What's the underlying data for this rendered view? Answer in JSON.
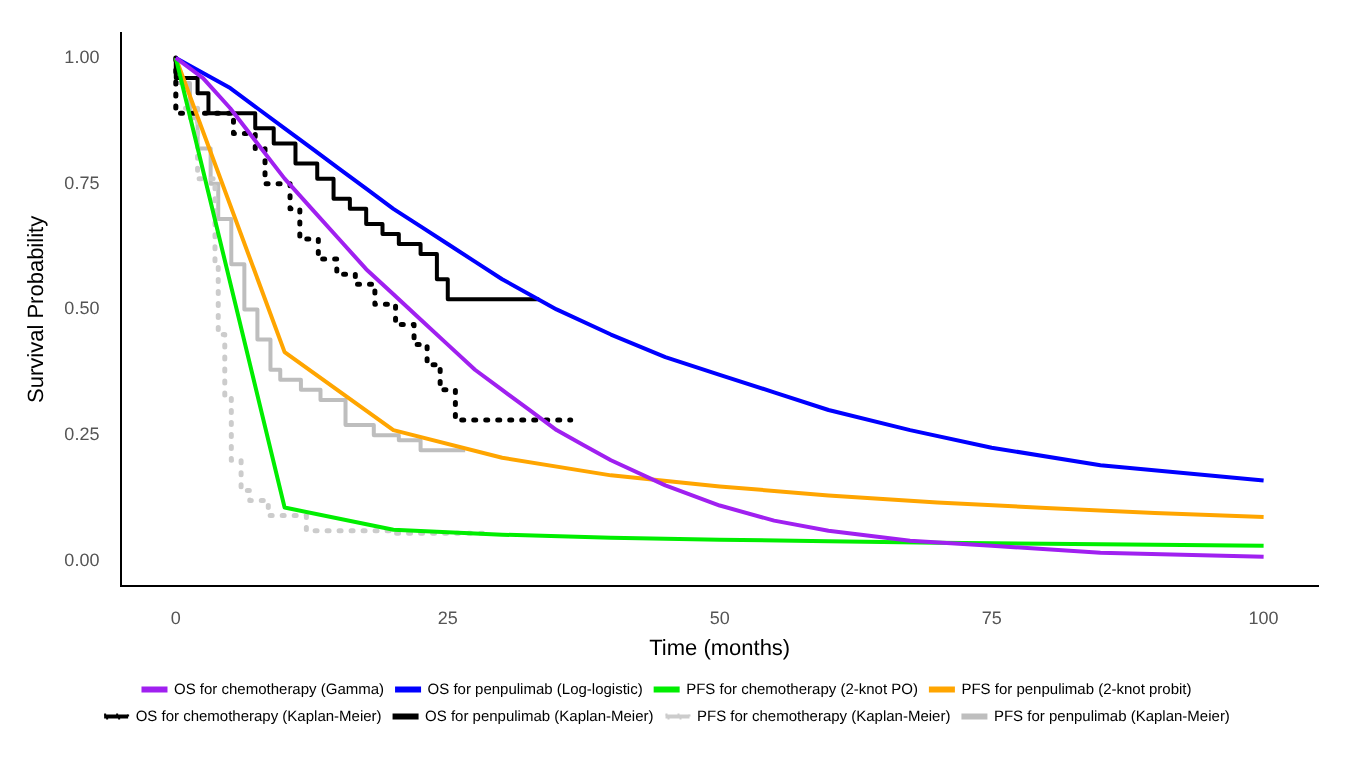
{
  "chart_data": {
    "type": "line",
    "xlabel": "Time (months)",
    "ylabel": "Survival Probability",
    "xlim": [
      -5,
      105
    ],
    "ylim": [
      -0.05,
      1.05
    ],
    "xticks": [
      0,
      25,
      50,
      75,
      100
    ],
    "yticks": [
      {
        "value": 0,
        "label": "0.00"
      },
      {
        "value": 0.25,
        "label": "0.25"
      },
      {
        "value": 0.5,
        "label": "0.50"
      },
      {
        "value": 0.75,
        "label": "0.75"
      },
      {
        "value": 1,
        "label": "1.00"
      }
    ],
    "grid": false,
    "legend": "bottom",
    "marker": "none",
    "series": [
      {
        "name": "OS for chemotherapy (Gamma)",
        "type": "line",
        "color": "#a020f0",
        "x": [
          0,
          2.5,
          5,
          7.5,
          10,
          12.5,
          15,
          17.5,
          20,
          22.5,
          25,
          27.5,
          30,
          32.5,
          35,
          37.5,
          40,
          45,
          50,
          55,
          60,
          67.5,
          75,
          85,
          100
        ],
        "values": [
          1.0,
          0.96,
          0.9,
          0.83,
          0.76,
          0.7,
          0.64,
          0.58,
          0.53,
          0.48,
          0.43,
          0.38,
          0.34,
          0.3,
          0.26,
          0.23,
          0.2,
          0.15,
          0.11,
          0.08,
          0.06,
          0.04,
          0.03,
          0.016,
          0.008
        ]
      },
      {
        "name": "OS for penpulimab (Log-logistic)",
        "type": "line",
        "color": "#0000ff",
        "x": [
          0,
          2.5,
          5,
          7.5,
          10,
          12.5,
          15,
          17.5,
          20,
          22.5,
          25,
          27.5,
          30,
          35,
          40,
          45,
          50,
          55,
          60,
          67.5,
          75,
          85,
          100
        ],
        "values": [
          1.0,
          0.97,
          0.94,
          0.9,
          0.86,
          0.82,
          0.78,
          0.74,
          0.7,
          0.665,
          0.63,
          0.595,
          0.56,
          0.5,
          0.45,
          0.405,
          0.37,
          0.335,
          0.3,
          0.26,
          0.225,
          0.19,
          0.16
        ]
      },
      {
        "name": "PFS for chemotherapy (2-knot PO)",
        "type": "line",
        "color": "#00ee00",
        "x": [
          0,
          10,
          20,
          30,
          40,
          50,
          60,
          70,
          80,
          90,
          100
        ],
        "values": [
          1.0,
          0.106,
          0.062,
          0.052,
          0.046,
          0.042,
          0.039,
          0.036,
          0.034,
          0.032,
          0.03
        ]
      },
      {
        "name": "PFS for penpulimab (2-knot probit)",
        "type": "line",
        "color": "#ffa500",
        "x": [
          0,
          10,
          20,
          30,
          40,
          50,
          60,
          70,
          80,
          90,
          100
        ],
        "values": [
          1.0,
          0.415,
          0.26,
          0.205,
          0.17,
          0.148,
          0.13,
          0.116,
          0.105,
          0.095,
          0.087
        ]
      },
      {
        "name": "OS for chemotherapy (Kaplan-Meier)",
        "type": "step",
        "line_style": "dotted",
        "color": "#000000",
        "x": [
          0,
          5.3,
          7.3,
          8.2,
          10.5,
          11.4,
          13.1,
          14.8,
          16.5,
          18.3,
          20.2,
          21.9,
          23.1,
          24.3,
          25.7,
          26.9,
          36.3
        ],
        "values": [
          1.0,
          0.89,
          0.85,
          0.82,
          0.75,
          0.7,
          0.64,
          0.6,
          0.57,
          0.55,
          0.51,
          0.47,
          0.43,
          0.39,
          0.34,
          0.28,
          0.28
        ]
      },
      {
        "name": "OS for penpulimab (Kaplan-Meier)",
        "type": "step",
        "color": "#000000",
        "x": [
          0,
          2,
          3,
          7.3,
          9,
          11,
          13,
          14.5,
          16,
          17.5,
          19,
          20.5,
          22.5,
          24,
          25,
          29.4,
          33.4
        ],
        "values": [
          1.0,
          0.96,
          0.93,
          0.89,
          0.86,
          0.83,
          0.79,
          0.76,
          0.72,
          0.7,
          0.67,
          0.65,
          0.63,
          0.61,
          0.56,
          0.52,
          0.52
        ]
      },
      {
        "name": "PFS for chemotherapy (Kaplan-Meier)",
        "type": "step",
        "line_style": "dotted",
        "color": "#cccccc",
        "x": [
          0,
          2,
          3.6,
          3.9,
          4.5,
          5.1,
          6,
          6.8,
          8.5,
          12,
          20,
          29
        ],
        "values": [
          1.0,
          0.9,
          0.76,
          0.59,
          0.45,
          0.33,
          0.2,
          0.14,
          0.12,
          0.09,
          0.06,
          0.055
        ]
      },
      {
        "name": "PFS for penpulimab (Kaplan-Meier)",
        "type": "step",
        "color": "#bebebe",
        "x": [
          0,
          1.3,
          2,
          3.2,
          3.9,
          5.1,
          6.3,
          7.5,
          8.7,
          9.6,
          11.5,
          13.3,
          15.6,
          18.2,
          20.5,
          22.5,
          24,
          26.6
        ],
        "values": [
          1.0,
          0.95,
          0.88,
          0.82,
          0.75,
          0.68,
          0.59,
          0.5,
          0.44,
          0.38,
          0.36,
          0.34,
          0.32,
          0.27,
          0.25,
          0.24,
          0.22,
          0.22
        ]
      }
    ]
  }
}
